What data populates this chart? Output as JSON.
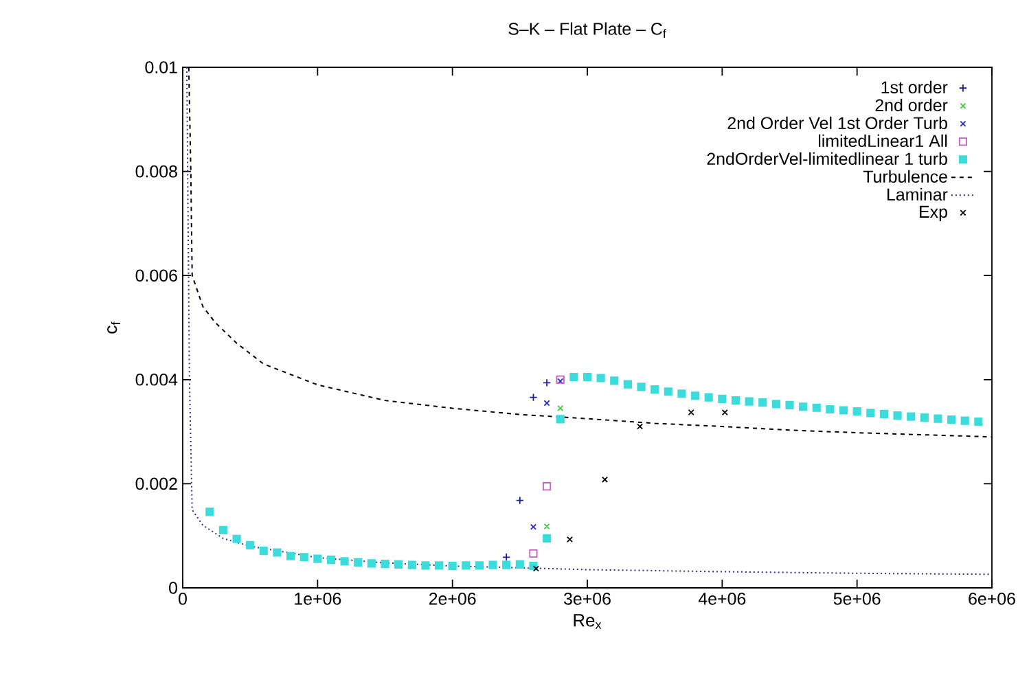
{
  "chart_data": {
    "type": "scatter",
    "title": "S–K – Flat Plate – C$_{f}$",
    "xlabel": "Re$_{x}$",
    "ylabel": "c$_{f}$",
    "xlim": [
      0,
      6000000
    ],
    "ylim": [
      0,
      0.01
    ],
    "xticks": [
      0,
      {
        "value": 1000000,
        "label": "1e+06"
      },
      {
        "value": 2000000,
        "label": "2e+06"
      },
      {
        "value": 3000000,
        "label": "3e+06"
      },
      {
        "value": 4000000,
        "label": "4e+06"
      },
      {
        "value": 5000000,
        "label": "5e+06"
      },
      {
        "value": 6000000,
        "label": "6e+06"
      }
    ],
    "yticks": [
      0,
      0.002,
      0.004,
      0.006,
      0.008,
      0.01
    ],
    "legend": "top right",
    "grid": false,
    "x": [
      200000,
      300000,
      400000,
      500000,
      600000,
      700000,
      800000,
      900000,
      1000000,
      1100000,
      1200000,
      1300000,
      1400000,
      1500000,
      1600000,
      1700000,
      1800000,
      1900000,
      2000000,
      2100000,
      2200000,
      2300000,
      2400000,
      2500000,
      2600000,
      2700000,
      2800000,
      2900000,
      3000000,
      3100000,
      3200000,
      3300000,
      3400000,
      3500000,
      3600000,
      3700000,
      3800000,
      3900000,
      4000000,
      4100000,
      4200000,
      4300000,
      4400000,
      4500000,
      4600000,
      4700000,
      4800000,
      4900000,
      5000000,
      5100000,
      5200000,
      5300000,
      5400000,
      5500000,
      5600000,
      5700000,
      5800000,
      5900000
    ],
    "series": [
      {
        "name": "1st order",
        "marker": "plus",
        "color": "#1c1c9a",
        "values": [
          null,
          null,
          null,
          null,
          null,
          null,
          null,
          null,
          null,
          null,
          null,
          null,
          null,
          null,
          null,
          null,
          null,
          null,
          null,
          null,
          null,
          null,
          0.00059,
          0.00168,
          0.00366,
          0.00394,
          null,
          null,
          null,
          null,
          null,
          null,
          null,
          null,
          null,
          null,
          null,
          null,
          null,
          null,
          null,
          null,
          null,
          null,
          null,
          null,
          null,
          null,
          null,
          null,
          null,
          null,
          null,
          null,
          null,
          null,
          null,
          null
        ]
      },
      {
        "name": "2nd order",
        "marker": "cross",
        "color": "#44c844",
        "values": [
          null,
          null,
          null,
          null,
          null,
          null,
          null,
          null,
          null,
          null,
          null,
          null,
          null,
          null,
          null,
          null,
          null,
          null,
          null,
          null,
          null,
          null,
          null,
          null,
          null,
          0.00118,
          0.00345,
          null,
          null,
          null,
          null,
          null,
          null,
          null,
          null,
          null,
          null,
          null,
          null,
          null,
          null,
          null,
          null,
          null,
          null,
          null,
          null,
          null,
          null,
          null,
          null,
          null,
          null,
          null,
          null,
          null,
          null,
          null
        ]
      },
      {
        "name": "2nd Order Vel 1st Order Turb",
        "marker": "cross",
        "color": "#2828c8",
        "values": [
          null,
          null,
          null,
          null,
          null,
          null,
          null,
          null,
          null,
          null,
          null,
          null,
          null,
          null,
          null,
          null,
          null,
          null,
          null,
          null,
          null,
          null,
          null,
          null,
          0.00117,
          0.00355,
          0.00397,
          null,
          null,
          null,
          null,
          null,
          null,
          null,
          null,
          null,
          null,
          null,
          null,
          null,
          null,
          null,
          null,
          null,
          null,
          null,
          null,
          null,
          null,
          null,
          null,
          null,
          null,
          null,
          null,
          null,
          null,
          null
        ]
      },
      {
        "name": "limitedLinear1 All",
        "marker": "square",
        "color": "#c060c0",
        "values": [
          null,
          null,
          null,
          null,
          null,
          null,
          null,
          null,
          null,
          null,
          null,
          null,
          null,
          null,
          null,
          null,
          null,
          null,
          null,
          null,
          null,
          null,
          null,
          null,
          0.00066,
          0.00195,
          0.004,
          null,
          null,
          null,
          null,
          null,
          null,
          null,
          null,
          null,
          null,
          null,
          null,
          null,
          null,
          null,
          null,
          null,
          null,
          null,
          null,
          null,
          null,
          null,
          null,
          null,
          null,
          null,
          null,
          null,
          null,
          null
        ]
      },
      {
        "name": "2ndOrderVel-limitedlinear 1 turb",
        "marker": "square filled",
        "color": "#3cdcdc",
        "values": [
          0.00146,
          0.00111,
          0.00094,
          0.00082,
          0.00071,
          0.00068,
          0.00061,
          0.00059,
          0.00056,
          0.00054,
          0.00051,
          0.00049,
          0.00047,
          0.00046,
          0.00045,
          0.00044,
          0.00043,
          0.00043,
          0.00042,
          0.00043,
          0.00043,
          0.00044,
          0.00044,
          0.00045,
          0.00042,
          0.00095,
          0.00324,
          0.00405,
          0.00405,
          0.00403,
          0.00398,
          0.00391,
          0.00386,
          0.00381,
          0.00377,
          0.00373,
          0.00369,
          0.00366,
          0.00363,
          0.0036,
          0.00358,
          0.00356,
          0.00353,
          0.00351,
          0.00348,
          0.00346,
          0.00343,
          0.00341,
          0.00339,
          0.00336,
          0.00334,
          0.00331,
          0.00329,
          0.00327,
          0.00325,
          0.00323,
          0.00321,
          0.00319
        ]
      },
      {
        "name": "Turbulence",
        "type": "line",
        "line_style": "dashed",
        "color": "#000000",
        "x": [
          45000,
          60000,
          70000,
          150000,
          240000,
          400000,
          600000,
          1000000,
          1500000,
          2000000,
          2500000,
          3000000,
          3500000,
          4000000,
          4500000,
          5000000,
          5500000,
          6000000
        ],
        "values": [
          0.01,
          0.008,
          0.006,
          0.0054,
          0.0051,
          0.0047,
          0.0043,
          0.0039,
          0.0036,
          0.00345,
          0.00333,
          0.00325,
          0.00316,
          0.0031,
          0.00303,
          0.00298,
          0.00294,
          0.0029
        ]
      },
      {
        "name": "Laminar",
        "type": "line",
        "line_style": "dotted",
        "color": "#2a2a8a",
        "x": [
          30000,
          50000,
          70000,
          150000,
          300000,
          500000,
          1000000,
          1500000,
          2000000,
          3000000,
          4000000,
          5000000,
          6000000
        ],
        "values": [
          0.01,
          0.004,
          0.0015,
          0.0012,
          0.00095,
          0.0008,
          0.00058,
          0.00048,
          0.00042,
          0.00035,
          0.00031,
          0.00028,
          0.00026
        ]
      },
      {
        "name": "Exp",
        "marker": "cross",
        "color": "#000000",
        "x": [
          2620000,
          2870000,
          3130000,
          3390000,
          3770000,
          4020000
        ],
        "values": [
          0.00037,
          0.00093,
          0.00208,
          0.0031,
          0.00337,
          0.00337
        ]
      }
    ]
  }
}
